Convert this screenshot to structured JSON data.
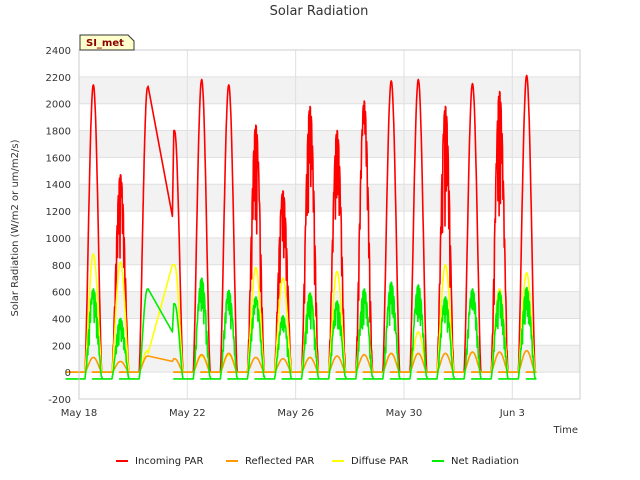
{
  "chart_data": {
    "type": "line",
    "title": "Solar Radiation",
    "xlabel": "Time",
    "ylabel": "Solar Radiation (W/m2 or um/m2/s)",
    "badge": "SI_met",
    "ylim": [
      -200,
      2400
    ],
    "yticks": [
      -200,
      0,
      200,
      400,
      600,
      800,
      1000,
      1200,
      1400,
      1600,
      1800,
      2000,
      2200,
      2400
    ],
    "xlim": [
      0,
      18.5
    ],
    "xticks": [
      {
        "day": 0,
        "label": "May 18"
      },
      {
        "day": 4,
        "label": "May 22"
      },
      {
        "day": 8,
        "label": "May 26"
      },
      {
        "day": 12,
        "label": "May 30"
      },
      {
        "day": 16,
        "label": "Jun 3"
      }
    ],
    "grid": true,
    "legend_position": "bottom",
    "day_peaks": [
      {
        "day": 0,
        "incoming": 2140,
        "reflected": 110,
        "diffuse": 880,
        "net": 620
      },
      {
        "day": 1,
        "incoming": 1470,
        "reflected": 80,
        "diffuse": 820,
        "net": 400
      },
      {
        "day": 2,
        "incoming": 2120,
        "reflected": 120,
        "diffuse": 160,
        "net": 620
      },
      {
        "day": 3,
        "incoming": 1800,
        "reflected": 100,
        "diffuse": 800,
        "net": 510
      },
      {
        "day": 4,
        "incoming": 2180,
        "reflected": 130,
        "diffuse": 120,
        "net": 700
      },
      {
        "day": 5,
        "incoming": 2140,
        "reflected": 140,
        "diffuse": 130,
        "net": 610
      },
      {
        "day": 6,
        "incoming": 1840,
        "reflected": 110,
        "diffuse": 780,
        "net": 560
      },
      {
        "day": 7,
        "incoming": 1350,
        "reflected": 100,
        "diffuse": 700,
        "net": 420
      },
      {
        "day": 8,
        "incoming": 1980,
        "reflected": 110,
        "diffuse": 590,
        "net": 590
      },
      {
        "day": 9,
        "incoming": 1800,
        "reflected": 120,
        "diffuse": 750,
        "net": 530
      },
      {
        "day": 10,
        "incoming": 2020,
        "reflected": 130,
        "diffuse": 560,
        "net": 620
      },
      {
        "day": 11,
        "incoming": 2170,
        "reflected": 140,
        "diffuse": 140,
        "net": 670
      },
      {
        "day": 12,
        "incoming": 2180,
        "reflected": 140,
        "diffuse": 300,
        "net": 650
      },
      {
        "day": 13,
        "incoming": 1980,
        "reflected": 140,
        "diffuse": 800,
        "net": 560
      },
      {
        "day": 14,
        "incoming": 2150,
        "reflected": 150,
        "diffuse": 150,
        "net": 620
      },
      {
        "day": 15,
        "incoming": 2090,
        "reflected": 150,
        "diffuse": 620,
        "net": 600
      },
      {
        "day": 16,
        "incoming": 2210,
        "reflected": 160,
        "diffuse": 740,
        "net": 630
      }
    ],
    "night_values": {
      "incoming": 0,
      "reflected": 0,
      "diffuse": 0,
      "net": -50
    },
    "gap": {
      "from_day": 2.55,
      "to_day": 3.45,
      "incoming": [
        2130,
        1160
      ],
      "reflected": [
        120,
        80
      ],
      "diffuse": [
        140,
        800
      ],
      "net": [
        620,
        300
      ]
    },
    "series": [
      {
        "key": "incoming",
        "name": "Incoming PAR",
        "color": "#ff0000"
      },
      {
        "key": "reflected",
        "name": "Reflected PAR",
        "color": "#ff9900"
      },
      {
        "key": "diffuse",
        "name": "Diffuse PAR",
        "color": "#ffff00"
      },
      {
        "key": "net",
        "name": "Net Radiation",
        "color": "#00ee00"
      }
    ]
  }
}
